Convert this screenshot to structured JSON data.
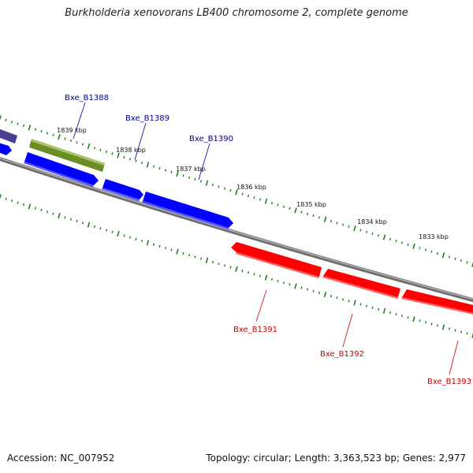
{
  "title": "Burkholderia xenovorans LB400 chromosome 2, complete genome",
  "footer": {
    "accession": "Accession: NC_007952",
    "stats": "Topology: circular; Length: 3,363,523 bp; Genes: 2,977"
  },
  "colors": {
    "forward_gene": "#0000ff",
    "reverse_gene": "#ff0000",
    "olive_gene": "#6b8e23",
    "purple_gene": "#4b3f8f",
    "backbone": "#808080",
    "tick": "#1f7f1f",
    "forward_label": "#00008b",
    "reverse_label": "#cc0000"
  },
  "position_labels": [
    "1839 kbp",
    "1838 kbp",
    "1837 kbp",
    "1836 kbp",
    "1835 kbp",
    "1834 kbp",
    "1833 kbp"
  ],
  "forward_genes": [
    {
      "label": "Bxe_B1388"
    },
    {
      "label": "Bxe_B1389"
    },
    {
      "label": "Bxe_B1390"
    }
  ],
  "reverse_genes": [
    {
      "label": "Bxe_B1391"
    },
    {
      "label": "Bxe_B1392"
    },
    {
      "label": "Bxe_B1393"
    }
  ]
}
